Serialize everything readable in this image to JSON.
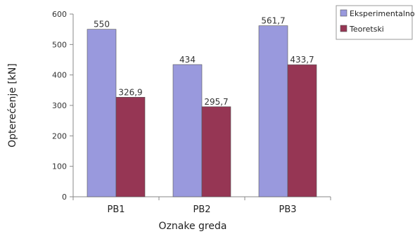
{
  "chart_data": {
    "type": "bar",
    "categories": [
      "PB1",
      "PB2",
      "PB3"
    ],
    "series": [
      {
        "name": "Eksperimentalno",
        "values": [
          550,
          434,
          561.7
        ],
        "labels": [
          "550",
          "434",
          "561,7"
        ],
        "color": "#9999dd"
      },
      {
        "name": "Teoretski",
        "values": [
          326.9,
          295.7,
          433.7
        ],
        "labels": [
          "326,9",
          "295,7",
          "433,7"
        ],
        "color": "#963654"
      }
    ],
    "xlabel": "Oznake greda",
    "ylabel": "Opterećenje [kN]",
    "ylim": [
      0,
      600
    ],
    "yticks": [
      0,
      100,
      200,
      300,
      400,
      500,
      600
    ],
    "grid": false,
    "legend_position": "top-right"
  }
}
